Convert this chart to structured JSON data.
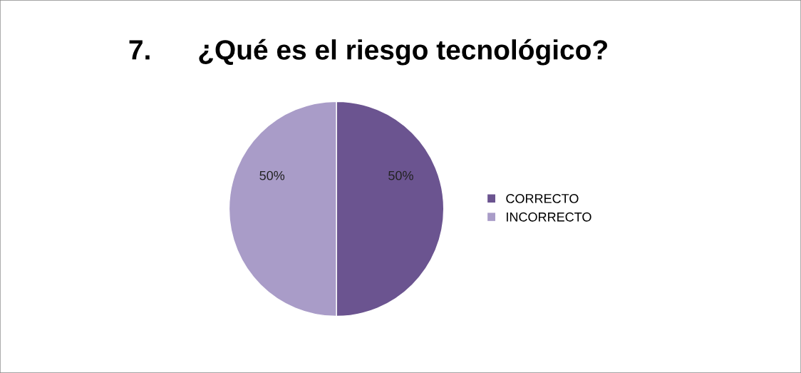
{
  "chart_data": {
    "type": "pie",
    "title": "7.      ¿Qué es el riesgo tecnológico?",
    "categories": [
      "CORRECTO",
      "INCORRECTO"
    ],
    "values": [
      50,
      50
    ],
    "colors": [
      "#6b5490",
      "#a99cc8"
    ],
    "value_labels": [
      "50%",
      "50%"
    ],
    "legend": "right"
  }
}
